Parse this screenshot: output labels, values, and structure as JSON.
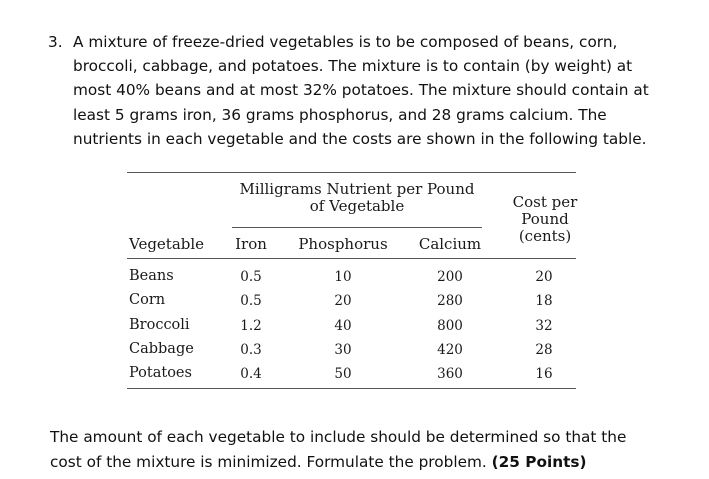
{
  "problem": {
    "number": "3.",
    "text": "A mixture of freeze-dried vegetables is to be composed of beans, corn, broccoli, cabbage, and potatoes. The mixture is to contain (by weight) at most 40% beans and at most 32% potatoes. The mixture should contain at least 5 grams iron, 36 grams phosphorus, and 28 grams calcium. The nutrients in each vegetable and the costs are shown in the following table."
  },
  "table": {
    "group_header_line1": "Milligrams Nutrient per Pound",
    "group_header_line2": "of Vegetable",
    "cost_header_line1": "Cost per",
    "cost_header_line2": "Pound",
    "cost_header_line3": "(cents)",
    "columns": [
      "Vegetable",
      "Iron",
      "Phosphorus",
      "Calcium"
    ],
    "rows": [
      {
        "vegetable": "Beans",
        "iron": "0.5",
        "phosphorus": "10",
        "calcium": "200",
        "cost": "20"
      },
      {
        "vegetable": "Corn",
        "iron": "0.5",
        "phosphorus": "20",
        "calcium": "280",
        "cost": "18"
      },
      {
        "vegetable": "Broccoli",
        "iron": "1.2",
        "phosphorus": "40",
        "calcium": "800",
        "cost": "32"
      },
      {
        "vegetable": "Cabbage",
        "iron": "0.3",
        "phosphorus": "30",
        "calcium": "420",
        "cost": "28"
      },
      {
        "vegetable": "Potatoes",
        "iron": "0.4",
        "phosphorus": "50",
        "calcium": "360",
        "cost": "16"
      }
    ]
  },
  "footer": {
    "text": "The amount of each vegetable to include should be determined so that the cost of the mixture is minimized. Formulate the problem.",
    "points": "(25 Points)"
  }
}
